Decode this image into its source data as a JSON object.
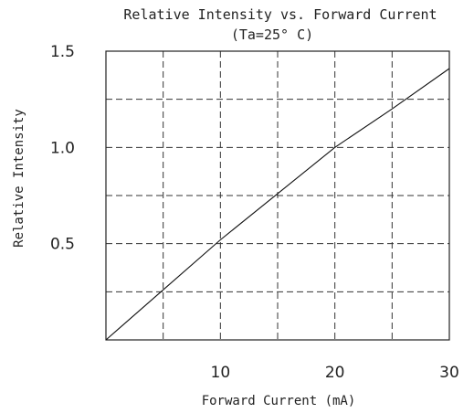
{
  "chart_data": {
    "type": "line",
    "title": "Relative Intensity vs. Forward Current",
    "subtitle": "(Ta=25° C)",
    "xlabel": "Forward Current (mA)",
    "ylabel": "Relative Intensity",
    "xlim": [
      0,
      30
    ],
    "ylim": [
      0,
      1.5
    ],
    "x_ticks": [
      10,
      20,
      30
    ],
    "x_tick_labels": [
      "10",
      "20",
      "30"
    ],
    "y_ticks": [
      0.5,
      1.0,
      1.5
    ],
    "y_tick_labels": [
      "0.5",
      "1.0",
      "1.5"
    ],
    "x_grid": [
      5,
      10,
      15,
      20,
      25
    ],
    "y_grid": [
      0.25,
      0.5,
      0.75,
      1.0,
      1.25
    ],
    "grid": true,
    "series": [
      {
        "x": [
          0,
          5,
          10,
          15,
          20,
          25,
          30
        ],
        "y": [
          0,
          0.26,
          0.52,
          0.76,
          1.0,
          1.2,
          1.41
        ]
      }
    ]
  }
}
